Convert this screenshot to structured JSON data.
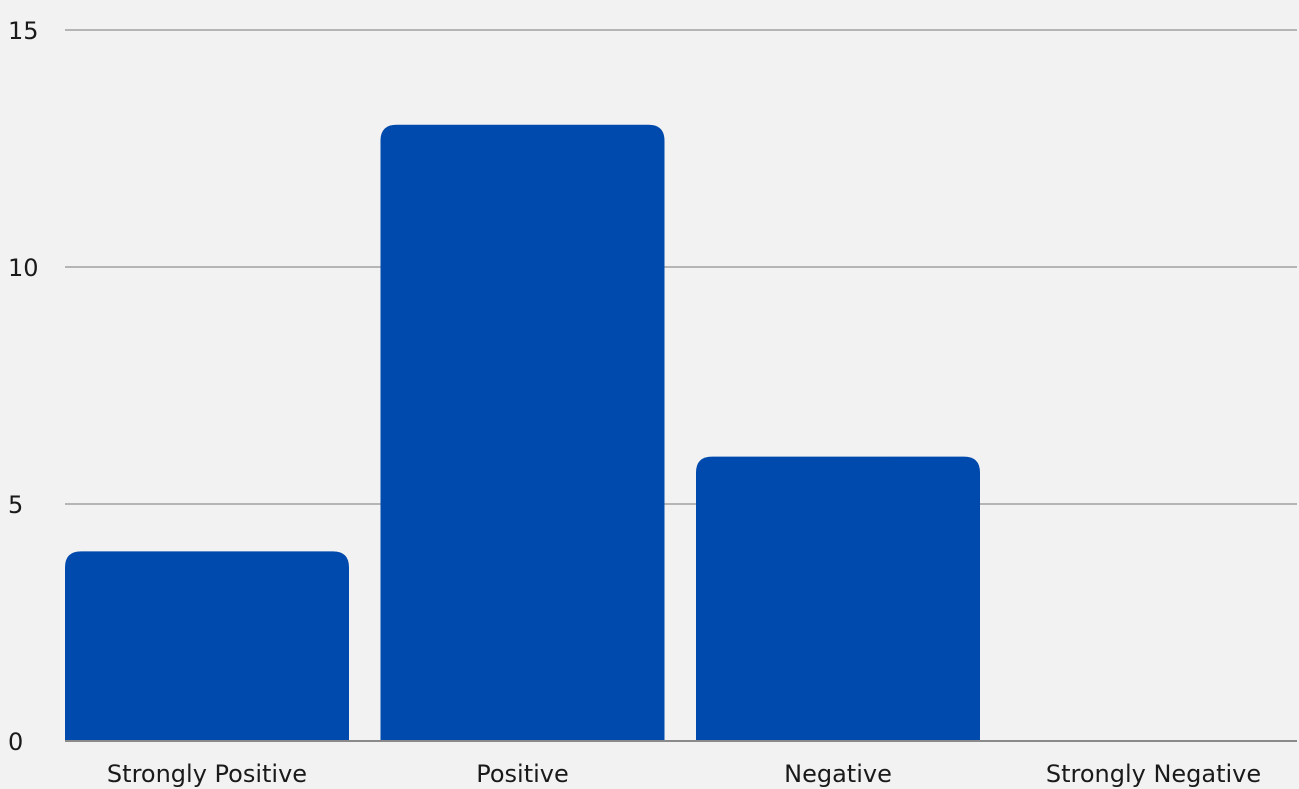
{
  "chart_data": {
    "type": "bar",
    "categories": [
      "Strongly Positive",
      "Positive",
      "Negative",
      "Strongly Negative"
    ],
    "values": [
      4,
      13,
      6,
      0
    ],
    "ylim": [
      0,
      15
    ],
    "yticks": [
      0,
      5,
      10,
      15
    ],
    "grid": true,
    "bar_color": "#004aad",
    "legend": "none"
  }
}
